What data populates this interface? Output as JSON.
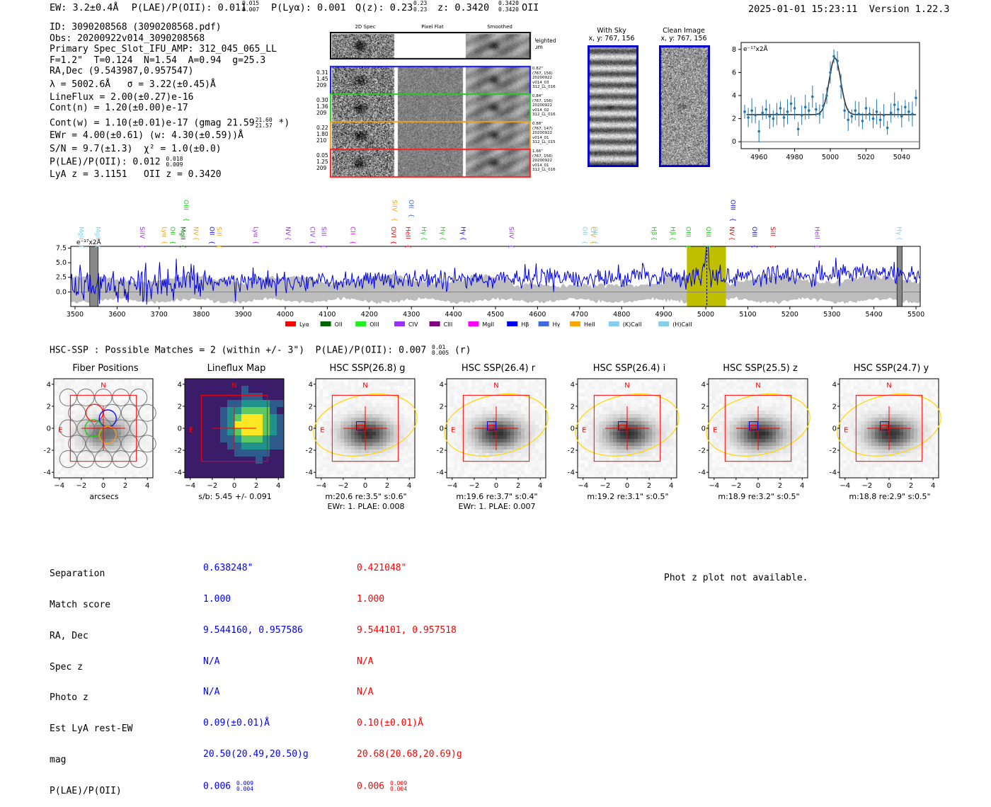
{
  "header": {
    "ew": "EW: 3.2±0.4Å",
    "plae": "P(LAE)/P(OII): 0.011",
    "plae_hi": "0.015",
    "plae_lo": "0.007",
    "plya": "P(Lyα): 0.001",
    "qz": "Q(z): 0.23",
    "qz_hi": "0.23",
    "qz_lo": "0.23",
    "z": "z: 0.3420",
    "z_hi": "0.3420",
    "z_lo": "0.3420",
    "z_line": "OII",
    "timestamp": "2025-01-01 15:23:11",
    "version": "Version 1.22.3"
  },
  "info": {
    "id": "ID: 3090208568 (3090208568.pdf)",
    "obs": "Obs: 20200922v014_3090208568",
    "primary": "Primary Spec_Slot_IFU_AMP: 312_045_065_LL",
    "params": "F=1.2\"  T=0.124  N=1.54  A=0.94  g=25.3",
    "radec": "RA,Dec (9.543987,0.957547)",
    "lambda": "λ = 5002.6Å   σ = 3.22(±0.45)Å",
    "lineflux": "LineFlux = 2.00(±0.27)e-16",
    "contn": "Cont(n) = 1.20(±0.00)e-17",
    "contw": "Cont(w) = 1.10(±0.01)e-17 (gmag 21.59",
    "contw_hi": "21.60",
    "contw_lo": "21.57",
    "contw_end": " *)",
    "ewr": "EWr = 4.00(±0.61) (w: 4.30(±0.59))Å",
    "sn": "S/N = 9.7(±1.3)  χ² = 1.0(±0.0)",
    "plae": "P(LAE)/P(OII): 0.012",
    "plae_hi": "0.018",
    "plae_lo": "0.009",
    "lyaz": "LyA z = 3.1151   OII z = 0.3420"
  },
  "cutouts": {
    "col_titles": [
      "2D Spec",
      "Pixel Flat",
      "Smoothed"
    ],
    "weighted_sum": "Weighted Sum",
    "rows": [
      {
        "stats": [
          "0.31",
          "1.45",
          "209"
        ],
        "meta": [
          "0.82\"",
          "(767, 156)",
          "20200922",
          "v014_03",
          "312_LL_016"
        ],
        "color": "#1010ff"
      },
      {
        "stats": [
          "0.30",
          "1.36",
          "209"
        ],
        "meta": [
          "0.84\"",
          "(767, 156)",
          "20200922",
          "v014_02",
          "312_LL_016"
        ],
        "color": "#22cc22"
      },
      {
        "stats": [
          "0.22",
          "1.80",
          "210"
        ],
        "meta": [
          "0.88\"",
          "(767, 147)",
          "20200922",
          "v014_01",
          "312_LL_015"
        ],
        "color": "#f0a020"
      },
      {
        "stats": [
          "0.05",
          "1.25",
          "209"
        ],
        "meta": [
          "1.66\"",
          "(767, 156)",
          "20200922",
          "v014_01",
          "312_LL_016"
        ],
        "color": "#ff2020"
      }
    ]
  },
  "sky": {
    "with_sky": "With Sky",
    "with_sky_coords": "x, y: 767, 156",
    "clean": "Clean Image",
    "clean_coords": "x, y: 767, 156"
  },
  "line_fit": {
    "type": "line",
    "title": "",
    "unit_label": "e⁻¹⁷x2Å",
    "xlim": [
      4950,
      5050
    ],
    "ylim": [
      -0.6,
      8.6
    ],
    "xticks": [
      4960,
      4980,
      5000,
      5020,
      5040
    ],
    "yticks": [
      0,
      2,
      4,
      6,
      8
    ],
    "x": [
      4952,
      4954,
      4956,
      4958,
      4960,
      4962,
      4964,
      4966,
      4968,
      4970,
      4972,
      4974,
      4976,
      4978,
      4980,
      4982,
      4984,
      4986,
      4988,
      4990,
      4992,
      4994,
      4996,
      4998,
      5000,
      5002,
      5004,
      5006,
      5008,
      5010,
      5012,
      5014,
      5016,
      5018,
      5020,
      5022,
      5024,
      5026,
      5028,
      5030,
      5032,
      5034,
      5036,
      5038,
      5040,
      5042,
      5044,
      5046,
      5048
    ],
    "y": [
      2.6,
      2.1,
      2.7,
      2.3,
      0.9,
      2.5,
      2.8,
      2.2,
      2.0,
      2.4,
      2.9,
      2.1,
      2.6,
      3.3,
      2.9,
      1.1,
      2.3,
      3.0,
      2.7,
      3.9,
      2.8,
      2.4,
      3.1,
      4.0,
      6.0,
      7.4,
      7.0,
      4.8,
      2.7,
      1.9,
      2.2,
      2.7,
      2.4,
      1.8,
      2.9,
      2.4,
      2.0,
      2.6,
      1.9,
      2.3,
      1.2,
      2.5,
      3.2,
      2.8,
      2.2,
      3.0,
      2.6,
      2.4,
      3.8
    ],
    "model_peak": 5002.6,
    "model_amp": 4.9,
    "model_sigma": 3.22,
    "model_cont": 2.35
  },
  "spectrum": {
    "type": "line",
    "unit_label": "e⁻¹⁷x2Å",
    "xlim": [
      3490,
      5510
    ],
    "ylim": [
      -2.5,
      7.8
    ],
    "xticks": [
      3500,
      3600,
      3700,
      3800,
      3900,
      4000,
      4100,
      4200,
      4300,
      4400,
      4500,
      4600,
      4700,
      4800,
      4900,
      5000,
      5100,
      5200,
      5300,
      5400,
      5500
    ],
    "yticks": [
      "0.0",
      "2.5",
      "5.0",
      "7.5"
    ],
    "ytick_values": [
      0,
      2.5,
      5.0,
      7.5
    ],
    "highlight_range": [
      4955,
      5048
    ],
    "marker_line": 5002.6,
    "gray_bands": [
      [
        3535,
        3555
      ],
      [
        5455,
        5467
      ]
    ],
    "line_labels": [
      {
        "name": "MgII",
        "x": 3515,
        "color": "#87ceeb",
        "row": 0
      },
      {
        "name": "MgII",
        "x": 3555,
        "color": "#87ceeb",
        "row": 0
      },
      {
        "name": "SiIV",
        "x": 3660,
        "color": "#9b30ff",
        "row": 0
      },
      {
        "name": "Lyα",
        "x": 3713,
        "color": "#ffa500",
        "row": 0
      },
      {
        "name": "OII",
        "x": 3732,
        "color": "#22cc22",
        "row": 0
      },
      {
        "name": "MgII",
        "x": 3757,
        "color": "#006400",
        "row": 0
      },
      {
        "name": "OIII",
        "x": 3764,
        "color": "#22cc22",
        "row": 1
      },
      {
        "name": "NV",
        "x": 3788,
        "color": "#ffa500",
        "row": 0
      },
      {
        "name": "OII",
        "x": 3826,
        "color": "#1010ff",
        "row": 0
      },
      {
        "name": "SiII",
        "x": 3843,
        "color": "#ffa500",
        "row": 0
      },
      {
        "name": "Lyα",
        "x": 3930,
        "color": "#9b30ff",
        "row": 0
      },
      {
        "name": "NV",
        "x": 4007,
        "color": "#9b30ff",
        "row": 0
      },
      {
        "name": "CIV",
        "x": 4065,
        "color": "#9b30ff",
        "row": 0
      },
      {
        "name": "SiII",
        "x": 4092,
        "color": "#9b30ff",
        "row": 0
      },
      {
        "name": "CII",
        "x": 4161,
        "color": "#ff00ff",
        "row": 0
      },
      {
        "name": "OVI",
        "x": 4258,
        "color": "#ff0000",
        "row": 0
      },
      {
        "name": "SiIV",
        "x": 4260,
        "color": "#ffa500",
        "row": 1
      },
      {
        "name": "OII",
        "x": 4300,
        "color": "#4169e1",
        "row": 1
      },
      {
        "name": "HeII",
        "x": 4292,
        "color": "#ff0000",
        "row": 0
      },
      {
        "name": "Hγ",
        "x": 4330,
        "color": "#22cc22",
        "row": 0
      },
      {
        "name": "Hγ",
        "x": 4375,
        "color": "#22cc22",
        "row": 0
      },
      {
        "name": "Hγ",
        "x": 4423,
        "color": "#1010ff",
        "row": 0
      },
      {
        "name": "SiIV",
        "x": 4538,
        "color": "#9b30ff",
        "row": 0
      },
      {
        "name": "OII",
        "x": 4713,
        "color": "#87ceeb",
        "row": 0
      },
      {
        "name": "CIV",
        "x": 4732,
        "color": "#ffa500",
        "row": 0
      },
      {
        "name": "OII",
        "x": 4737,
        "color": "#87ceeb",
        "row": 0
      },
      {
        "name": "Hβ",
        "x": 4877,
        "color": "#22cc22",
        "row": 0
      },
      {
        "name": "Hβ",
        "x": 4922,
        "color": "#22cc22",
        "row": 0
      },
      {
        "name": "OIII",
        "x": 4959,
        "color": "#22cc22",
        "row": 0
      },
      {
        "name": "OIII",
        "x": 5007,
        "color": "#22cc22",
        "row": 0
      },
      {
        "name": "NV",
        "x": 5062,
        "color": "#ff0000",
        "row": 0
      },
      {
        "name": "OIII",
        "x": 5065,
        "color": "#1010ff",
        "row": 1
      },
      {
        "name": "OIII",
        "x": 5116,
        "color": "#1010ff",
        "row": 0
      },
      {
        "name": "SiII",
        "x": 5160,
        "color": "#ff0000",
        "row": 0
      },
      {
        "name": "HeII",
        "x": 5265,
        "color": "#9b30ff",
        "row": 0
      },
      {
        "name": "Hγ",
        "x": 5460,
        "color": "#87ceeb",
        "row": 0
      }
    ],
    "legend": [
      {
        "name": "Lyα",
        "color": "#ff0000"
      },
      {
        "name": "OII",
        "color": "#006400"
      },
      {
        "name": "OIII",
        "color": "#22ee22"
      },
      {
        "name": "CIV",
        "color": "#9b30ff"
      },
      {
        "name": "CIII",
        "color": "#800080"
      },
      {
        "name": "MgII",
        "color": "#ff00ff"
      },
      {
        "name": "Hβ",
        "color": "#0000ee"
      },
      {
        "name": "Hγ",
        "color": "#4169e1"
      },
      {
        "name": "HeII",
        "color": "#ffa500"
      },
      {
        "name": "(K)CaII",
        "color": "#87ceeb"
      },
      {
        "name": "(H)CaII",
        "color": "#87ceeb"
      }
    ]
  },
  "hsc": {
    "title": "HSC-SSP : Possible Matches = 2 (within +/- 3\")  P(LAE)/P(OII): 0.007",
    "title_hi": "0.01",
    "title_lo": "0.005",
    "title_end": " (r)",
    "stamps": [
      {
        "title": "Fiber Positions",
        "caption": "arcsecs",
        "caption2": ""
      },
      {
        "title": "Lineflux Map",
        "caption": "s/b: 5.45 +/- 0.091",
        "caption2": ""
      },
      {
        "title": "HSC SSP(26.8) g",
        "caption": "m:20.6  re:3.5\"  s:0.6\"",
        "caption2": "EWr: 1. PLAE: 0.008"
      },
      {
        "title": "HSC SSP(26.4) r",
        "caption": "m:19.6  re:3.7\"  s:0.4\"",
        "caption2": "EWr: 1. PLAE: 0.007"
      },
      {
        "title": "HSC SSP(26.4) i",
        "caption": "m:19.2  re:3.1\"  s:0.5\"",
        "caption2": ""
      },
      {
        "title": "HSC SSP(25.5) z",
        "caption": "m:18.9  re:3.2\"  s:0.5\"",
        "caption2": ""
      },
      {
        "title": "HSC SSP(24.7) y",
        "caption": "m:18.8  re:2.9\"  s:0.5\"",
        "caption2": ""
      }
    ],
    "axis_ticks": [
      "4",
      "2",
      "0",
      "−2",
      "−4"
    ],
    "x_ticks": [
      "−4",
      "−2",
      "0",
      "2",
      "4"
    ],
    "compass_n": "N",
    "compass_e": "E"
  },
  "match_table": {
    "labels": [
      "Separation",
      "Match score",
      "RA, Dec",
      "Spec z",
      "Photo z",
      "Est LyA rest-EW",
      "mag",
      "P(LAE)/P(OII)"
    ],
    "col1": [
      "0.638248\"",
      "1.000",
      "9.544160, 0.957586",
      "N/A",
      "N/A",
      "0.09(±0.01)Å",
      "20.50(20.49,20.50)g",
      "0.006"
    ],
    "col1_hi": "0.009",
    "col1_lo": "0.004",
    "col2": [
      "0.421048\"",
      "1.000",
      "9.544101, 0.957518",
      "N/A",
      "N/A",
      "0.10(±0.01)Å",
      "20.68(20.68,20.69)g",
      "0.006"
    ],
    "col2_hi": "0.009",
    "col2_lo": "0.004",
    "col1_color": "#0000ff",
    "col2_color": "#ff0000"
  },
  "photz": {
    "message": "Phot z plot not available."
  }
}
